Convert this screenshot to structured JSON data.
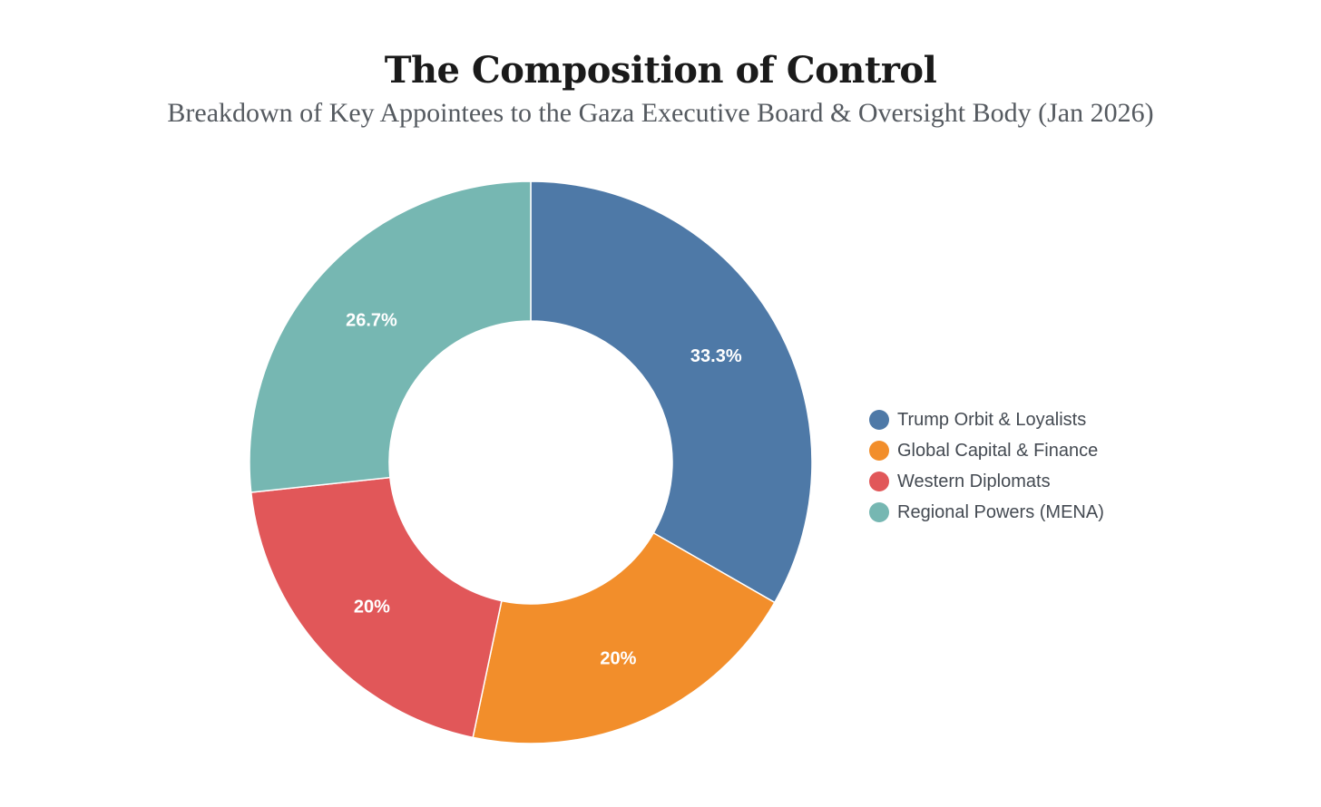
{
  "chart_data": {
    "type": "pie",
    "donut": true,
    "title": "The Composition of Control",
    "subtitle": "Breakdown of Key Appointees to the Gaza Executive Board & Oversight Body (Jan 2026)",
    "legend_position": "right",
    "slices": [
      {
        "name": "Trump Orbit & Loyalists",
        "value": 33.3,
        "label": "33.3%",
        "color": "#4e79a7"
      },
      {
        "name": "Global Capital & Finance",
        "value": 20,
        "label": "20%",
        "color": "#f28e2b"
      },
      {
        "name": "Western Diplomats",
        "value": 20,
        "label": "20%",
        "color": "#e15759"
      },
      {
        "name": "Regional Powers (MENA)",
        "value": 26.7,
        "label": "26.7%",
        "color": "#76b7b2"
      }
    ]
  }
}
